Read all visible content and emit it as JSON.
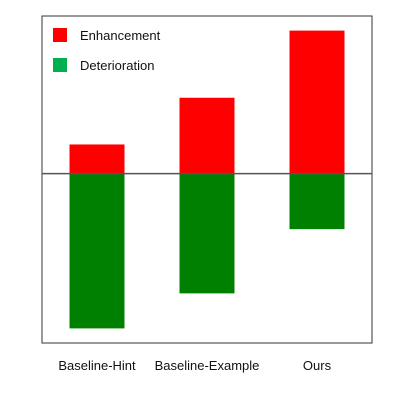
{
  "chart_data": {
    "type": "bar",
    "categories": [
      "Baseline-Hint",
      "Baseline-Example",
      "Ours"
    ],
    "series": [
      {
        "name": "Enhancement",
        "values": [
          1.0,
          2.6,
          4.9
        ],
        "color": "#ff0000"
      },
      {
        "name": "Deterioration",
        "values": [
          -5.3,
          -4.1,
          -1.9
        ],
        "color": "#008000"
      }
    ],
    "legend": {
      "placement": "top-left",
      "entries": [
        {
          "label": "Enhancement",
          "swatch_color": "#ff0000"
        },
        {
          "label": "Deterioration",
          "swatch_color": "#00b050"
        }
      ]
    },
    "baseline": 0,
    "ylim": [
      -5.8,
      5.4
    ],
    "grid": false,
    "show_y_ticks": false,
    "title": "",
    "xlabel": "",
    "ylabel": ""
  }
}
